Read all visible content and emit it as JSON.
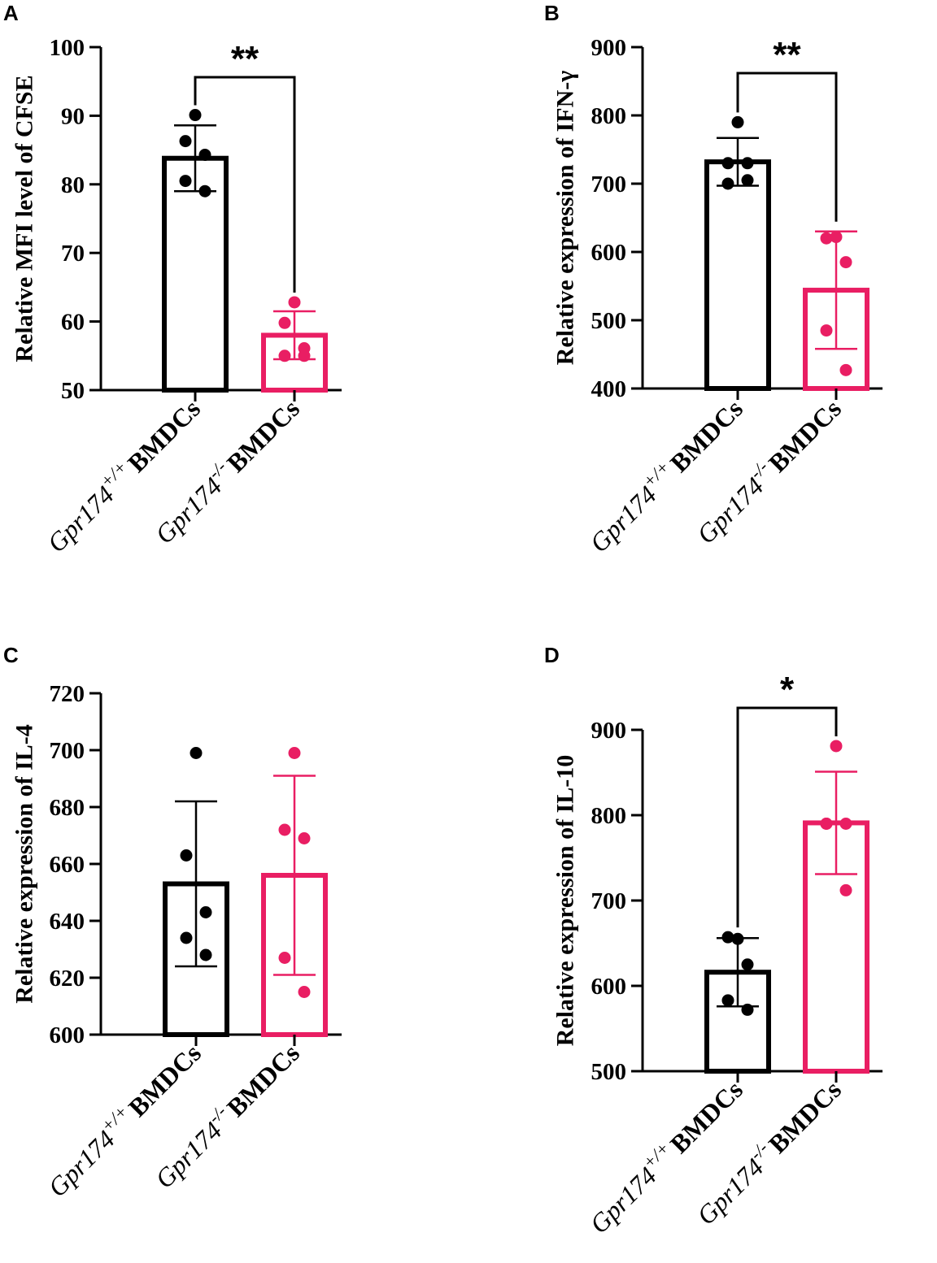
{
  "figure": {
    "colors": {
      "wildtype": "#000000",
      "knockout": "#E91E63",
      "axis": "#000000"
    }
  },
  "chart_data": [
    {
      "panel": "A",
      "type": "bar",
      "ylabel": "Relative MFI level of CFSE",
      "ylim": [
        50,
        100
      ],
      "yticks": [
        "50",
        "60",
        "70",
        "80",
        "90",
        "100"
      ],
      "categories": [
        {
          "gene": "Gpr174",
          "sup": "+/+",
          "cell": "BMDCs"
        },
        {
          "gene": "Gpr174",
          "sup": "-/-",
          "cell": "BMDCs"
        }
      ],
      "series": [
        {
          "name": "Gpr174+/+ BMDCs",
          "color": "#000000",
          "mean": 83.8,
          "sd": 4.8,
          "points": [
            90.1,
            86.3,
            84.3,
            80.5,
            79.0
          ]
        },
        {
          "name": "Gpr174-/- BMDCs",
          "color": "#E91E63",
          "mean": 58.0,
          "sd": 3.5,
          "points": [
            62.8,
            59.8,
            56.1,
            55.0,
            55.0
          ]
        }
      ],
      "significance": "**"
    },
    {
      "panel": "B",
      "type": "bar",
      "ylabel": "Relative expression of IFN-γ",
      "ylim": [
        400,
        900
      ],
      "yticks": [
        "400",
        "500",
        "600",
        "700",
        "800",
        "900"
      ],
      "categories": [
        {
          "gene": "Gpr174",
          "sup": "+/+",
          "cell": "BMDCs"
        },
        {
          "gene": "Gpr174",
          "sup": "-/-",
          "cell": "BMDCs"
        }
      ],
      "series": [
        {
          "name": "Gpr174+/+ BMDCs",
          "color": "#000000",
          "mean": 732,
          "sd": 35,
          "points": [
            790,
            730,
            730,
            700,
            705
          ]
        },
        {
          "name": "Gpr174-/- BMDCs",
          "color": "#E91E63",
          "mean": 544,
          "sd": 86,
          "points": [
            622,
            620,
            585,
            485,
            427
          ]
        }
      ],
      "significance": "**"
    },
    {
      "panel": "C",
      "type": "bar",
      "ylabel": "Relative expression of IL-4",
      "ylim": [
        600,
        720
      ],
      "yticks": [
        "600",
        "620",
        "640",
        "660",
        "680",
        "700",
        "720"
      ],
      "categories": [
        {
          "gene": "Gpr174",
          "sup": "+/+",
          "cell": "BMDCs"
        },
        {
          "gene": "Gpr174",
          "sup": "-/-",
          "cell": "BMDCs"
        }
      ],
      "series": [
        {
          "name": "Gpr174+/+ BMDCs",
          "color": "#000000",
          "mean": 653,
          "sd": 29,
          "points": [
            699,
            663,
            643,
            634,
            628
          ]
        },
        {
          "name": "Gpr174-/- BMDCs",
          "color": "#E91E63",
          "mean": 656,
          "sd": 35,
          "points": [
            699,
            672,
            669,
            627,
            615
          ]
        }
      ],
      "significance": ""
    },
    {
      "panel": "D",
      "type": "bar",
      "ylabel": "Relative expression of IL-10",
      "ylim": [
        500,
        900
      ],
      "yticks": [
        "500",
        "600",
        "700",
        "800",
        "900"
      ],
      "categories": [
        {
          "gene": "Gpr174",
          "sup": "+/+",
          "cell": "BMDCs"
        },
        {
          "gene": "Gpr174",
          "sup": "-/-",
          "cell": "BMDCs"
        }
      ],
      "series": [
        {
          "name": "Gpr174+/+ BMDCs",
          "color": "#000000",
          "mean": 616,
          "sd": 40,
          "points": [
            655,
            657,
            625,
            583,
            572
          ]
        },
        {
          "name": "Gpr174-/- BMDCs",
          "color": "#E91E63",
          "mean": 791,
          "sd": 60,
          "points": [
            881,
            790,
            790,
            790,
            712
          ]
        }
      ],
      "significance": "*"
    }
  ]
}
